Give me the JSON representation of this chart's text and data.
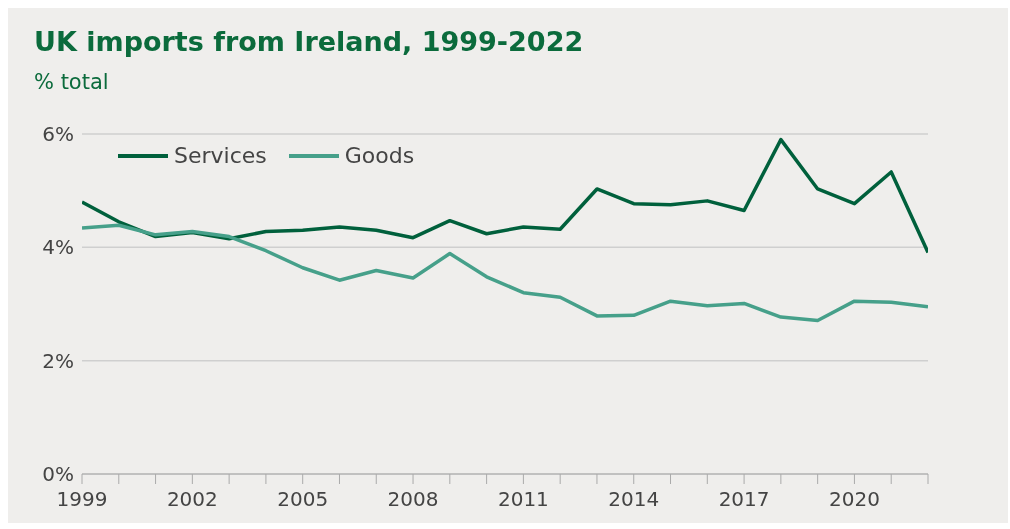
{
  "chart_data": {
    "type": "line",
    "title": "UK imports from Ireland, 1999-2022",
    "subtitle": "% total",
    "x": [
      1999,
      2000,
      2001,
      2002,
      2003,
      2004,
      2005,
      2006,
      2007,
      2008,
      2009,
      2010,
      2011,
      2012,
      2013,
      2014,
      2015,
      2016,
      2017,
      2018,
      2019,
      2020,
      2021,
      2022
    ],
    "series": [
      {
        "name": "Services",
        "color": "#00603c",
        "values": [
          4.8,
          4.45,
          4.19,
          4.26,
          4.15,
          4.28,
          4.3,
          4.36,
          4.3,
          4.17,
          4.47,
          4.24,
          4.36,
          4.32,
          5.03,
          4.77,
          4.75,
          4.82,
          4.65,
          5.9,
          5.03,
          4.77,
          5.33,
          3.91
        ]
      },
      {
        "name": "Goods",
        "color": "#46a08a",
        "values": [
          4.34,
          4.39,
          4.22,
          4.28,
          4.19,
          3.94,
          3.64,
          3.42,
          3.59,
          3.46,
          3.89,
          3.48,
          3.2,
          3.12,
          2.79,
          2.8,
          3.05,
          2.97,
          3.01,
          2.77,
          2.71,
          3.05,
          3.03,
          2.95
        ]
      }
    ],
    "xlim": [
      1999,
      2022
    ],
    "xticks": [
      1999,
      {
        "value": 2000,
        "label": null
      },
      {
        "value": 2001,
        "label": null
      },
      2002,
      {
        "value": 2003,
        "label": null
      },
      {
        "value": 2004,
        "label": null
      },
      2005,
      {
        "value": 2006,
        "label": null
      },
      {
        "value": 2007,
        "label": null
      },
      2008,
      {
        "value": 2009,
        "label": null
      },
      {
        "value": 2010,
        "label": null
      },
      2011,
      {
        "value": 2012,
        "label": null
      },
      {
        "value": 2013,
        "label": null
      },
      2014,
      {
        "value": 2015,
        "label": null
      },
      {
        "value": 2016,
        "label": null
      },
      2017,
      {
        "value": 2018,
        "label": null
      },
      {
        "value": 2019,
        "label": null
      },
      2020,
      {
        "value": 2021,
        "label": null
      },
      {
        "value": 2022,
        "label": null
      }
    ],
    "ylim": [
      0,
      6
    ],
    "yticks": [
      {
        "value": 0,
        "label": "0%"
      },
      {
        "value": 2,
        "label": "2%"
      },
      {
        "value": 4,
        "label": "4%"
      },
      {
        "value": 6,
        "label": "6%"
      }
    ],
    "grid": "y",
    "legend": "top left",
    "marker": "none",
    "line_style": "solid"
  }
}
